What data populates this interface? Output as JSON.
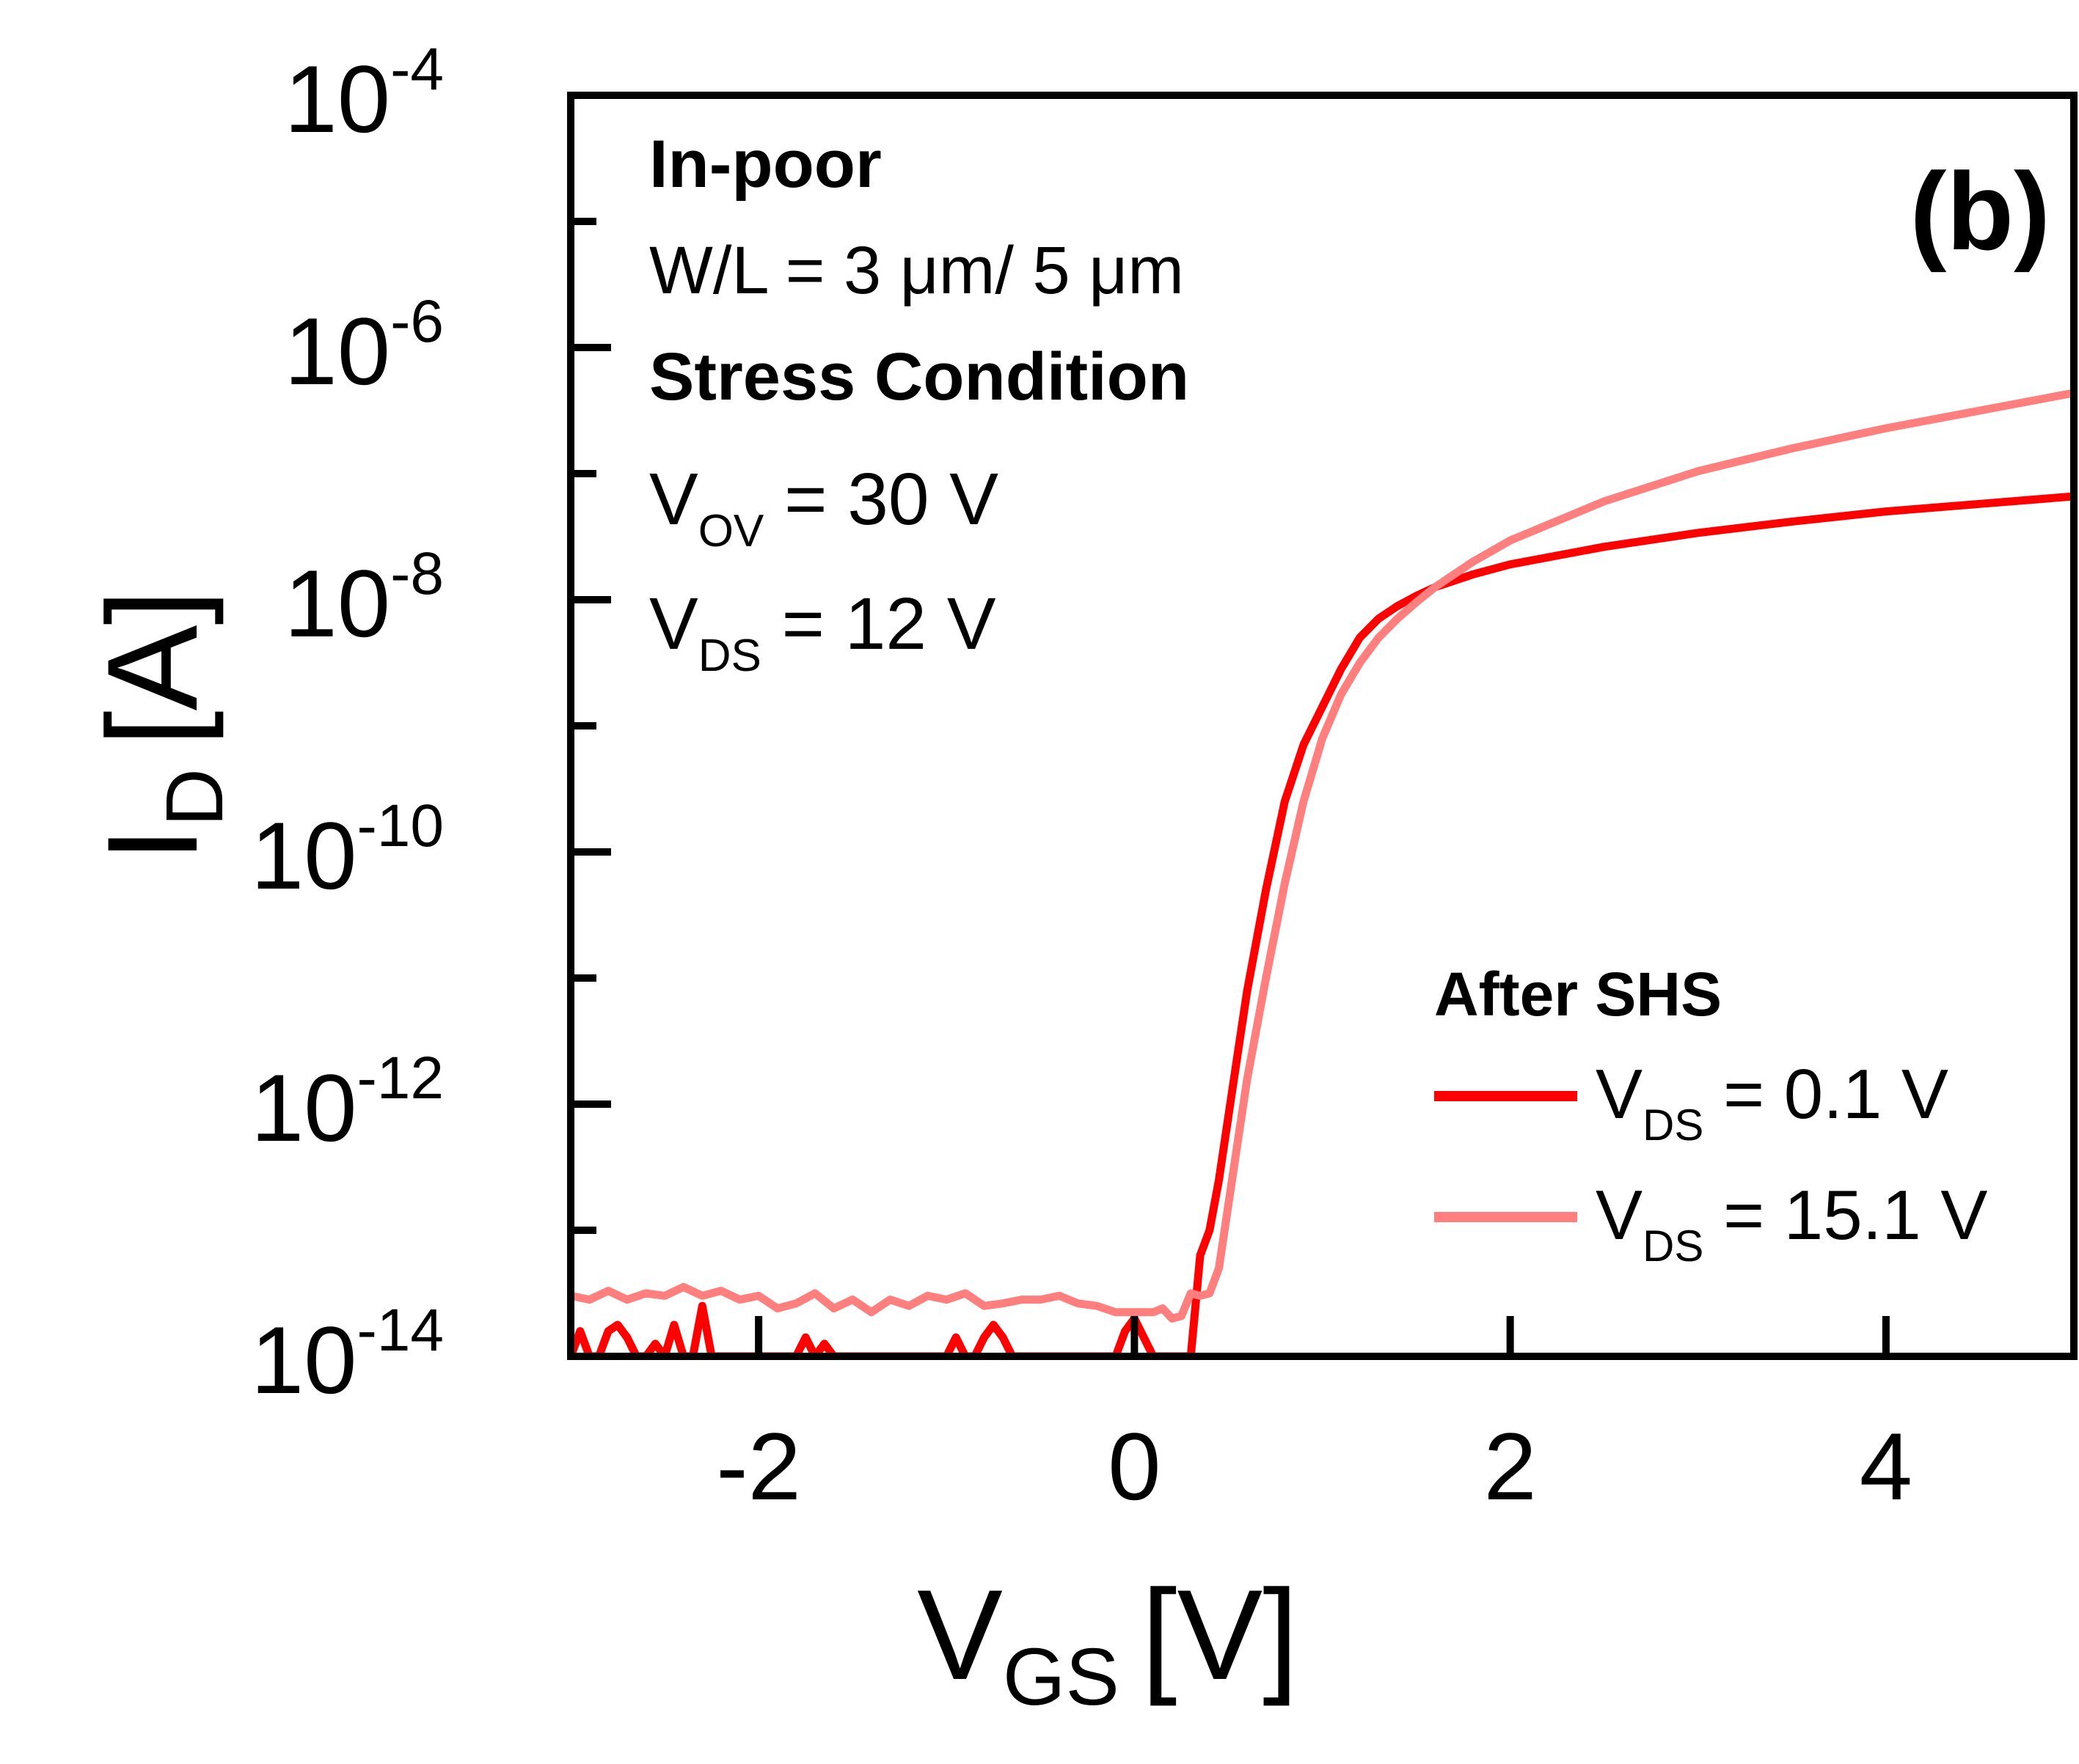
{
  "chart_data": {
    "type": "line",
    "panel_label": "(b)",
    "xlabel": {
      "main": "V",
      "sub": "GS",
      "unit": "[V]"
    },
    "ylabel": {
      "main": "I",
      "sub": "D",
      "unit": "[A]"
    },
    "xlim": [
      -3,
      5
    ],
    "ylim": [
      1e-14,
      0.0001
    ],
    "yscale": "log",
    "x_ticks": [
      {
        "value": -2,
        "label": "-2"
      },
      {
        "value": 0,
        "label": "0"
      },
      {
        "value": 2,
        "label": "2"
      },
      {
        "value": 4,
        "label": "4"
      }
    ],
    "y_ticks": [
      {
        "exp": -4,
        "base": "10",
        "sup": "-4"
      },
      {
        "exp": -6,
        "base": "10",
        "sup": "-6"
      },
      {
        "exp": -8,
        "base": "10",
        "sup": "-8"
      },
      {
        "exp": -10,
        "base": "10",
        "sup": "-10"
      },
      {
        "exp": -12,
        "base": "10",
        "sup": "-12"
      },
      {
        "exp": -14,
        "base": "10",
        "sup": "-14"
      }
    ],
    "y_minor_exps": [
      -5,
      -7,
      -9,
      -11,
      -13
    ],
    "annotations": {
      "line1": "In-poor",
      "line2": "W/L = 3 μm/ 5 μm",
      "line3": "Stress Condition",
      "vov": {
        "main": "V",
        "sub": "OV",
        "rest": " = 30 V"
      },
      "vds": {
        "main": "V",
        "sub": "DS",
        "rest": " = 12 V"
      }
    },
    "legend": {
      "title": "After SHS",
      "position": "bottom-right",
      "entries": [
        {
          "main": "V",
          "sub": "DS",
          "rest": " = 0.1 V"
        },
        {
          "main": "V",
          "sub": "DS",
          "rest": " = 15.1 V"
        }
      ]
    },
    "series": [
      {
        "color": "#ff0000",
        "x": [
          -3.0,
          -2.95,
          -2.9,
          -2.85,
          -2.8,
          -2.75,
          -2.7,
          -2.65,
          -2.6,
          -2.55,
          -2.5,
          -2.45,
          -2.4,
          -2.35,
          -2.3,
          -2.25,
          -2.2,
          -2.15,
          -2.1,
          -2.0,
          -1.9,
          -1.8,
          -1.75,
          -1.7,
          -1.65,
          -1.6,
          -1.55,
          -1.5,
          -1.45,
          -1.4,
          -1.2,
          -1.0,
          -0.95,
          -0.9,
          -0.85,
          -0.8,
          -0.75,
          -0.7,
          -0.65,
          -0.6,
          -0.55,
          -0.45,
          -0.4,
          -0.3,
          -0.2,
          -0.1,
          -0.05,
          0.0,
          0.05,
          0.1,
          0.15,
          0.2,
          0.3,
          0.35,
          0.4,
          0.45,
          0.5,
          0.55,
          0.6,
          0.65,
          0.7,
          0.8,
          0.9,
          1.0,
          1.1,
          1.2,
          1.3,
          1.4,
          1.5,
          1.6,
          1.8,
          2.0,
          2.5,
          3.0,
          3.5,
          4.0,
          4.5,
          5.0
        ],
        "y": [
          -14.0,
          -13.8,
          -14.0,
          -14.0,
          -13.8,
          -13.75,
          -13.85,
          -14.0,
          -14.0,
          -13.9,
          -14.0,
          -13.75,
          -14.0,
          -14.0,
          -13.6,
          -14.0,
          -14.0,
          -14.0,
          -14.0,
          -14.0,
          -14.0,
          -14.0,
          -13.85,
          -14.0,
          -13.9,
          -14.0,
          -14.0,
          -14.0,
          -14.0,
          -14.0,
          -14.0,
          -14.0,
          -13.85,
          -14.0,
          -14.0,
          -13.85,
          -13.75,
          -13.85,
          -14.0,
          -14.0,
          -14.0,
          -14.0,
          -14.0,
          -14.0,
          -14.0,
          -14.0,
          -13.8,
          -13.7,
          -13.85,
          -14.0,
          -14.0,
          -14.0,
          -14.0,
          -13.2,
          -13.0,
          -12.6,
          -12.1,
          -11.6,
          -11.1,
          -10.7,
          -10.3,
          -9.6,
          -9.15,
          -8.85,
          -8.55,
          -8.3,
          -8.15,
          -8.05,
          -7.97,
          -7.9,
          -7.8,
          -7.72,
          -7.58,
          -7.47,
          -7.38,
          -7.3,
          -7.24,
          -7.18
        ]
      },
      {
        "color": "#ff7f7f",
        "x": [
          -3.0,
          -2.9,
          -2.8,
          -2.7,
          -2.6,
          -2.5,
          -2.4,
          -2.3,
          -2.2,
          -2.1,
          -2.0,
          -1.9,
          -1.8,
          -1.7,
          -1.6,
          -1.5,
          -1.4,
          -1.3,
          -1.2,
          -1.1,
          -1.0,
          -0.9,
          -0.8,
          -0.7,
          -0.6,
          -0.5,
          -0.4,
          -0.3,
          -0.2,
          -0.1,
          0.0,
          0.1,
          0.15,
          0.2,
          0.25,
          0.3,
          0.35,
          0.4,
          0.45,
          0.5,
          0.55,
          0.6,
          0.7,
          0.8,
          0.9,
          1.0,
          1.1,
          1.2,
          1.3,
          1.4,
          1.5,
          1.6,
          1.8,
          2.0,
          2.5,
          3.0,
          3.5,
          4.0,
          4.5,
          5.0
        ],
        "y": [
          -13.52,
          -13.55,
          -13.48,
          -13.55,
          -13.5,
          -13.52,
          -13.45,
          -13.52,
          -13.48,
          -13.55,
          -13.52,
          -13.62,
          -13.58,
          -13.5,
          -13.62,
          -13.55,
          -13.65,
          -13.55,
          -13.6,
          -13.52,
          -13.55,
          -13.5,
          -13.6,
          -13.58,
          -13.55,
          -13.55,
          -13.52,
          -13.58,
          -13.6,
          -13.65,
          -13.65,
          -13.65,
          -13.62,
          -13.7,
          -13.68,
          -13.5,
          -13.52,
          -13.5,
          -13.3,
          -12.8,
          -12.3,
          -11.8,
          -11.0,
          -10.25,
          -9.6,
          -9.1,
          -8.75,
          -8.5,
          -8.3,
          -8.15,
          -8.02,
          -7.9,
          -7.7,
          -7.53,
          -7.22,
          -6.98,
          -6.8,
          -6.64,
          -6.5,
          -6.36
        ]
      }
    ]
  }
}
